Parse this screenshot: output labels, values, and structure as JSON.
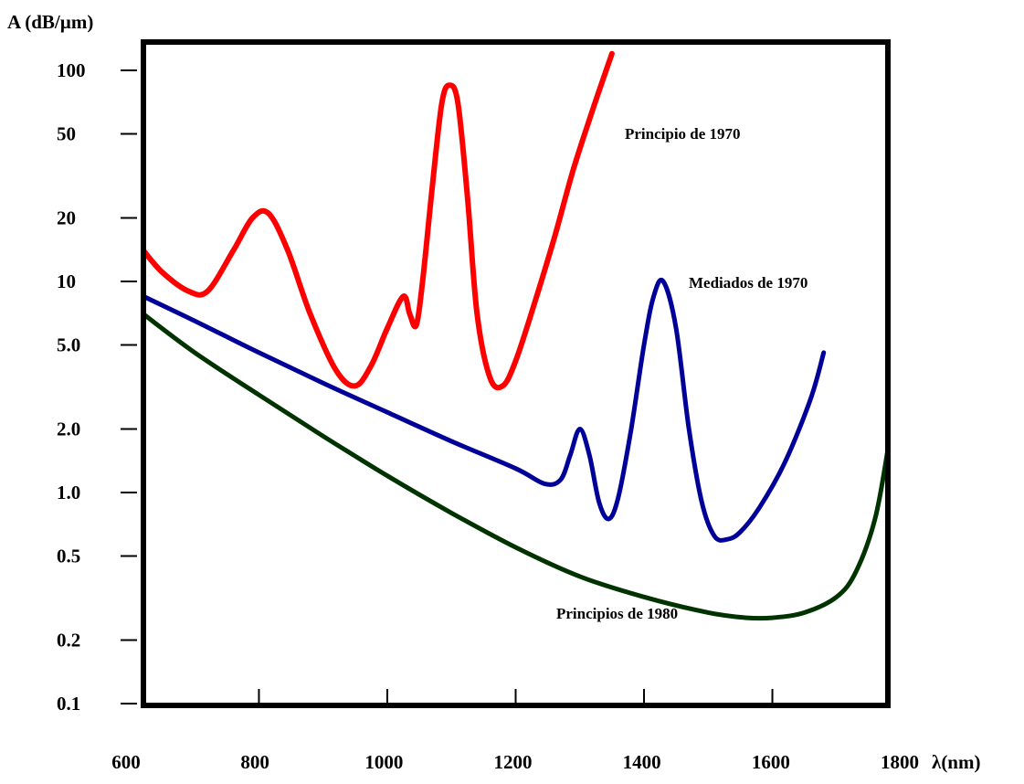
{
  "chart_data": {
    "type": "line",
    "title": "",
    "ylabel": "A (dB/µm)",
    "xlabel": "λ(nm)",
    "y_scale": "log",
    "xlim": [
      620,
      1780
    ],
    "ylim": [
      0.1,
      120
    ],
    "grid": false,
    "x_ticks": [
      "600",
      "800",
      "1000",
      "1200",
      "1400",
      "1600",
      "1800"
    ],
    "x_tick_values": [
      600,
      800,
      1000,
      1200,
      1400,
      1600,
      1800
    ],
    "y_ticks": [
      "100",
      "50",
      "20",
      "10",
      "5.0",
      "2.0",
      "1.0",
      "0.5",
      "0.2",
      "0.1"
    ],
    "y_tick_values": [
      100,
      50,
      20,
      10,
      5,
      2,
      1,
      0.5,
      0.2,
      0.1
    ],
    "series": [
      {
        "name": "Principio de 1970",
        "color": "#ff0000",
        "x": [
          620,
          650,
          690,
          720,
          760,
          790,
          815,
          845,
          880,
          920,
          950,
          975,
          1000,
          1025,
          1035,
          1045,
          1055,
          1070,
          1085,
          1097,
          1110,
          1125,
          1140,
          1160,
          1180,
          1200,
          1230,
          1260,
          1290,
          1320,
          1350
        ],
        "values": [
          14,
          11,
          9,
          9,
          14,
          20,
          21,
          14,
          7,
          3.8,
          3.2,
          4,
          6,
          8.5,
          7,
          6.2,
          10,
          28,
          70,
          85,
          70,
          25,
          7,
          3.5,
          3.2,
          4.2,
          8,
          16,
          34,
          65,
          120
        ]
      },
      {
        "name": "Mediados de 1970",
        "color": "#000099",
        "x": [
          620,
          700,
          800,
          900,
          1000,
          1100,
          1200,
          1245,
          1270,
          1285,
          1300,
          1315,
          1330,
          1345,
          1360,
          1380,
          1400,
          1415,
          1430,
          1450,
          1470,
          1490,
          1510,
          1530,
          1550,
          1580,
          1620,
          1660,
          1680
        ],
        "values": [
          8.5,
          6.5,
          4.6,
          3.3,
          2.4,
          1.75,
          1.3,
          1.1,
          1.15,
          1.5,
          2.0,
          1.5,
          0.9,
          0.75,
          0.95,
          2.0,
          5.0,
          8.5,
          10,
          6,
          2,
          0.9,
          0.62,
          0.6,
          0.65,
          0.85,
          1.4,
          2.8,
          4.6
        ]
      },
      {
        "name": "Principios de 1980",
        "color": "#003300",
        "x": [
          620,
          700,
          800,
          900,
          1000,
          1100,
          1200,
          1300,
          1400,
          1500,
          1560,
          1600,
          1650,
          1700,
          1730,
          1760,
          1780
        ],
        "values": [
          7,
          4.6,
          2.9,
          1.85,
          1.2,
          0.8,
          0.55,
          0.4,
          0.32,
          0.27,
          0.255,
          0.255,
          0.27,
          0.32,
          0.42,
          0.75,
          1.6
        ]
      }
    ]
  }
}
